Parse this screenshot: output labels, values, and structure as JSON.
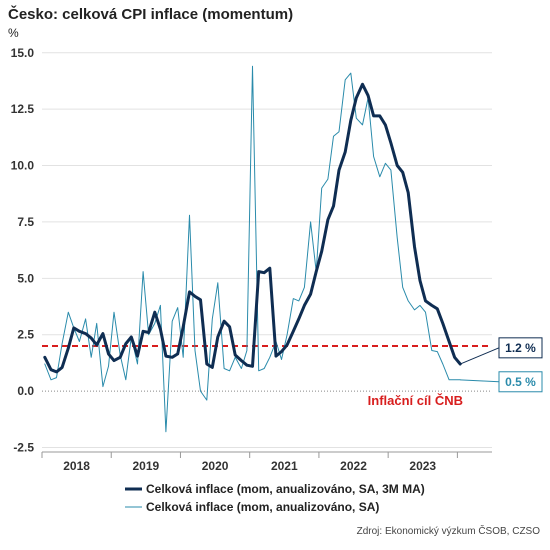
{
  "title": "Česko: celková CPI inflace (momentum)",
  "unit": "%",
  "source": "Zdroj: Ekonomický výzkum ČSOB, CZSO",
  "colors": {
    "ma": "#0f2d52",
    "raw": "#2a8bab",
    "target": "#d81e1e",
    "grid": "#e2e2e2"
  },
  "chart_data": {
    "type": "line",
    "yticks": [
      -2.5,
      0,
      2.5,
      5,
      7.5,
      10,
      12.5,
      15
    ],
    "ytick_labels": [
      "-2.5",
      "0.0",
      "2.5",
      "5.0",
      "7.5",
      "10.0",
      "12.5",
      "15.0"
    ],
    "ylim": [
      -2.7,
      15.3
    ],
    "xlim": [
      2017.5,
      2024.0
    ],
    "year_labels": [
      {
        "label": "2018",
        "x": 2018.0
      },
      {
        "label": "2019",
        "x": 2019.0
      },
      {
        "label": "2020",
        "x": 2020.0
      },
      {
        "label": "2021",
        "x": 2021.0
      },
      {
        "label": "2022",
        "x": 2022.0
      },
      {
        "label": "2023",
        "x": 2023.0
      }
    ],
    "target": {
      "value": 2.0,
      "label": "Inflační cíl ČNB"
    },
    "series": [
      {
        "name": "Celková inflace (mom, anualizováno, SA, 3M MA)",
        "end_label": "1.2 %",
        "x": [
          2017.54,
          2017.63,
          2017.71,
          2017.79,
          2017.88,
          2017.96,
          2018.04,
          2018.13,
          2018.21,
          2018.29,
          2018.38,
          2018.46,
          2018.54,
          2018.63,
          2018.71,
          2018.79,
          2018.88,
          2018.96,
          2019.04,
          2019.13,
          2019.21,
          2019.29,
          2019.38,
          2019.46,
          2019.54,
          2019.63,
          2019.71,
          2019.79,
          2019.88,
          2019.96,
          2020.04,
          2020.13,
          2020.21,
          2020.29,
          2020.38,
          2020.46,
          2020.54,
          2020.63,
          2020.71,
          2020.79,
          2020.88,
          2020.96,
          2021.04,
          2021.13,
          2021.21,
          2021.29,
          2021.38,
          2021.46,
          2021.54,
          2021.63,
          2021.71,
          2021.79,
          2021.88,
          2021.96,
          2022.04,
          2022.13,
          2022.21,
          2022.29,
          2022.38,
          2022.46,
          2022.54,
          2022.63,
          2022.71,
          2022.79,
          2022.88,
          2022.96,
          2023.04,
          2023.13,
          2023.21,
          2023.29,
          2023.38,
          2023.46,
          2023.54
        ],
        "y": [
          1.5,
          0.95,
          0.85,
          1.05,
          1.9,
          2.8,
          2.65,
          2.55,
          2.35,
          2.05,
          2.55,
          1.65,
          1.35,
          1.5,
          2.1,
          2.4,
          1.55,
          2.65,
          2.6,
          3.5,
          2.75,
          1.55,
          1.5,
          1.65,
          2.85,
          4.4,
          4.2,
          4.05,
          1.2,
          1.05,
          2.4,
          3.1,
          2.85,
          1.6,
          1.35,
          1.15,
          1.1,
          5.3,
          5.25,
          5.45,
          1.55,
          1.75,
          2.05,
          2.65,
          3.2,
          3.8,
          4.3,
          5.3,
          6.2,
          7.6,
          8.2,
          9.8,
          10.6,
          12.0,
          13.0,
          13.6,
          13.1,
          12.2,
          12.2,
          11.8,
          11.0,
          10.0,
          9.7,
          8.8,
          6.4,
          4.9,
          4.0,
          3.8,
          3.65,
          3.0,
          2.2,
          1.5,
          1.2
        ]
      },
      {
        "name": "Celková inflace (mom, anualizováno, SA)",
        "end_label": "0.5 %",
        "x": [
          2017.54,
          2017.63,
          2017.71,
          2017.79,
          2017.88,
          2017.96,
          2018.04,
          2018.13,
          2018.21,
          2018.29,
          2018.38,
          2018.46,
          2018.54,
          2018.63,
          2018.71,
          2018.79,
          2018.88,
          2018.96,
          2019.04,
          2019.13,
          2019.21,
          2019.29,
          2019.38,
          2019.46,
          2019.54,
          2019.63,
          2019.71,
          2019.79,
          2019.88,
          2019.96,
          2020.04,
          2020.13,
          2020.21,
          2020.29,
          2020.38,
          2020.46,
          2020.54,
          2020.63,
          2020.71,
          2020.79,
          2020.88,
          2020.96,
          2021.04,
          2021.13,
          2021.21,
          2021.29,
          2021.38,
          2021.46,
          2021.54,
          2021.63,
          2021.71,
          2021.79,
          2021.88,
          2021.96,
          2022.04,
          2022.13,
          2022.21,
          2022.29,
          2022.38,
          2022.46,
          2022.54,
          2022.63,
          2022.71,
          2022.79,
          2022.88,
          2022.96,
          2023.04,
          2023.13,
          2023.21,
          2023.29,
          2023.38,
          2023.46,
          2023.54
        ],
        "y": [
          1.2,
          0.5,
          0.6,
          2.1,
          3.5,
          2.8,
          2.2,
          3.2,
          1.5,
          3.0,
          0.2,
          1.1,
          3.5,
          1.6,
          0.5,
          2.4,
          1.2,
          5.3,
          2.5,
          3.0,
          3.8,
          -1.8,
          3.1,
          3.7,
          1.5,
          7.8,
          1.8,
          0.0,
          -0.4,
          3.2,
          4.8,
          1.0,
          0.9,
          1.5,
          1.0,
          1.8,
          14.4,
          0.9,
          1.0,
          1.5,
          2.2,
          1.4,
          2.5,
          4.1,
          4.0,
          4.6,
          7.5,
          5.3,
          9.0,
          9.4,
          11.3,
          11.5,
          13.8,
          14.1,
          12.1,
          11.8,
          13.0,
          10.4,
          9.5,
          10.1,
          9.8,
          6.8,
          4.6,
          4.0,
          3.6,
          3.8,
          3.5,
          1.8,
          1.75,
          1.2,
          0.5,
          0.5,
          0.5
        ]
      }
    ]
  }
}
